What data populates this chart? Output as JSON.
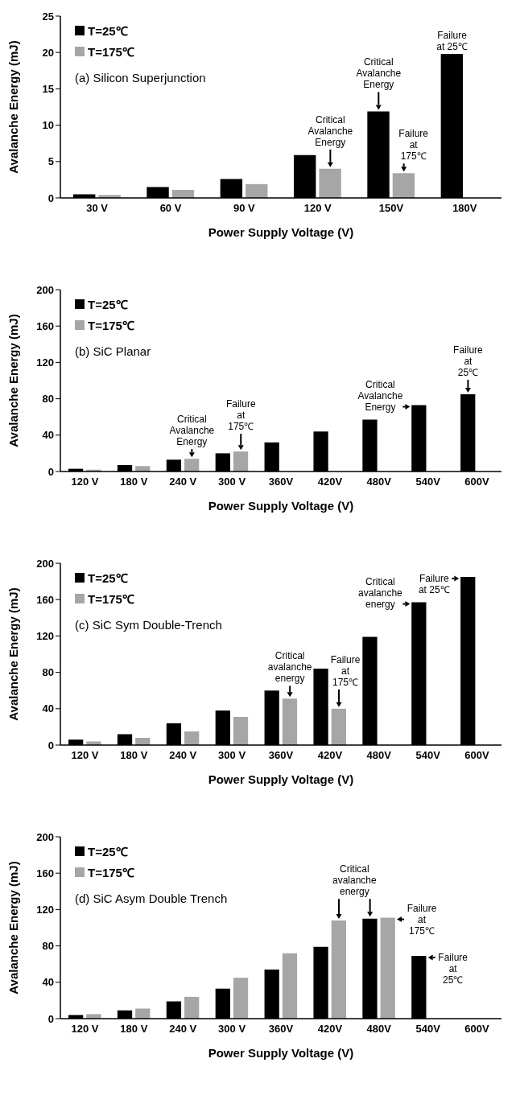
{
  "chart_data": [
    {
      "type": "bar",
      "title": "(a) Silicon Superjunction",
      "xlabel": "Power Supply Voltage (V)",
      "ylabel": "Avalanche Energy (mJ)",
      "categories": [
        "30 V",
        "60 V",
        "90 V",
        "120 V",
        "150V",
        "180V"
      ],
      "series": [
        {
          "name": "T=25℃",
          "color": "#000000",
          "values": [
            0.5,
            1.5,
            2.6,
            5.9,
            11.9,
            19.8
          ]
        },
        {
          "name": "T=175℃",
          "color": "#a6a6a6",
          "values": [
            0.4,
            1.1,
            1.9,
            4.0,
            3.4,
            null
          ]
        }
      ],
      "ylim": [
        0,
        25
      ],
      "yticks": [
        0,
        5,
        10,
        15,
        20,
        25
      ],
      "legend": "top left",
      "annotations": [
        {
          "text": "Critical\nAvalanche\nEnergy",
          "x": "120 V",
          "y": 4.0
        },
        {
          "text": "Critical\nAvalanche\nEnergy",
          "x": "150V",
          "y": 11.9
        },
        {
          "text": "Failure\nat\n175℃",
          "x": "150V",
          "y": 3.4
        },
        {
          "text": "Failure\nat 25℃",
          "x": "180V",
          "y": 19.8
        }
      ]
    },
    {
      "type": "bar",
      "title": "(b) SiC Planar",
      "xlabel": "Power Supply Voltage (V)",
      "ylabel": "Avalanche Energy (mJ)",
      "categories": [
        "120 V",
        "180 V",
        "240 V",
        "300 V",
        "360V",
        "420V",
        "480V",
        "540V",
        "600V"
      ],
      "series": [
        {
          "name": "T=25℃",
          "color": "#000000",
          "values": [
            3,
            7,
            13,
            20,
            32,
            44,
            57,
            73,
            85
          ]
        },
        {
          "name": "T=175℃",
          "color": "#a6a6a6",
          "values": [
            2,
            6,
            14,
            22,
            null,
            null,
            null,
            null,
            null
          ]
        }
      ],
      "ylim": [
        0,
        200
      ],
      "yticks": [
        0,
        40,
        80,
        120,
        160,
        200
      ],
      "legend": "top left",
      "annotations": [
        {
          "text": "Critical\nAvalanche\nEnergy",
          "x": "240 V",
          "y": 14
        },
        {
          "text": "Failure\nat\n175℃",
          "x": "300 V",
          "y": 22
        },
        {
          "text": "Critical\nAvalanche\nEnergy",
          "x": "540V",
          "y": 73
        },
        {
          "text": "Failure\nat\n25℃",
          "x": "600V",
          "y": 85
        }
      ]
    },
    {
      "type": "bar",
      "title": "(c) SiC Sym Double-Trench",
      "xlabel": "Power Supply Voltage (V)",
      "ylabel": "Avalanche Energy (mJ)",
      "categories": [
        "120 V",
        "180 V",
        "240 V",
        "300 V",
        "360V",
        "420V",
        "480V",
        "540V",
        "600V"
      ],
      "series": [
        {
          "name": "T=25℃",
          "color": "#000000",
          "values": [
            6,
            12,
            24,
            38,
            60,
            84,
            119,
            157,
            185
          ]
        },
        {
          "name": "T=175℃",
          "color": "#a6a6a6",
          "values": [
            4,
            8,
            15,
            31,
            51,
            40,
            null,
            null,
            null
          ]
        }
      ],
      "ylim": [
        0,
        200
      ],
      "yticks": [
        0,
        40,
        80,
        120,
        160,
        200
      ],
      "legend": "top left",
      "annotations": [
        {
          "text": "Critical\navalanche\nenergy",
          "x": "360V",
          "y": 51
        },
        {
          "text": "Failure\nat\n175℃",
          "x": "420V",
          "y": 40
        },
        {
          "text": "Critical\navalanche\nenergy",
          "x": "540V",
          "y": 157
        },
        {
          "text": "Failure\nat 25℃",
          "x": "600V",
          "y": 185
        }
      ]
    },
    {
      "type": "bar",
      "title": "(d) SiC Asym Double Trench",
      "xlabel": "Power Supply Voltage (V)",
      "ylabel": "Avalanche Energy (mJ)",
      "categories": [
        "120 V",
        "180 V",
        "240 V",
        "300 V",
        "360V",
        "420V",
        "480V",
        "540V",
        "600V"
      ],
      "series": [
        {
          "name": "T=25℃",
          "color": "#000000",
          "values": [
            4,
            9,
            19,
            33,
            54,
            79,
            110,
            69,
            null
          ]
        },
        {
          "name": "T=175℃",
          "color": "#a6a6a6",
          "values": [
            5,
            11,
            24,
            45,
            72,
            108,
            111,
            null,
            null
          ]
        }
      ],
      "ylim": [
        0,
        200
      ],
      "yticks": [
        0,
        40,
        80,
        120,
        160,
        200
      ],
      "legend": "top left",
      "annotations": [
        {
          "text": "Critical\navalanche\nenergy",
          "x": "420V",
          "y": 108
        },
        {
          "text": "Failure\nat\n175℃",
          "x": "480V",
          "y": 111
        },
        {
          "text": "Failure\nat\n25℃",
          "x": "540V",
          "y": 69
        }
      ]
    }
  ]
}
